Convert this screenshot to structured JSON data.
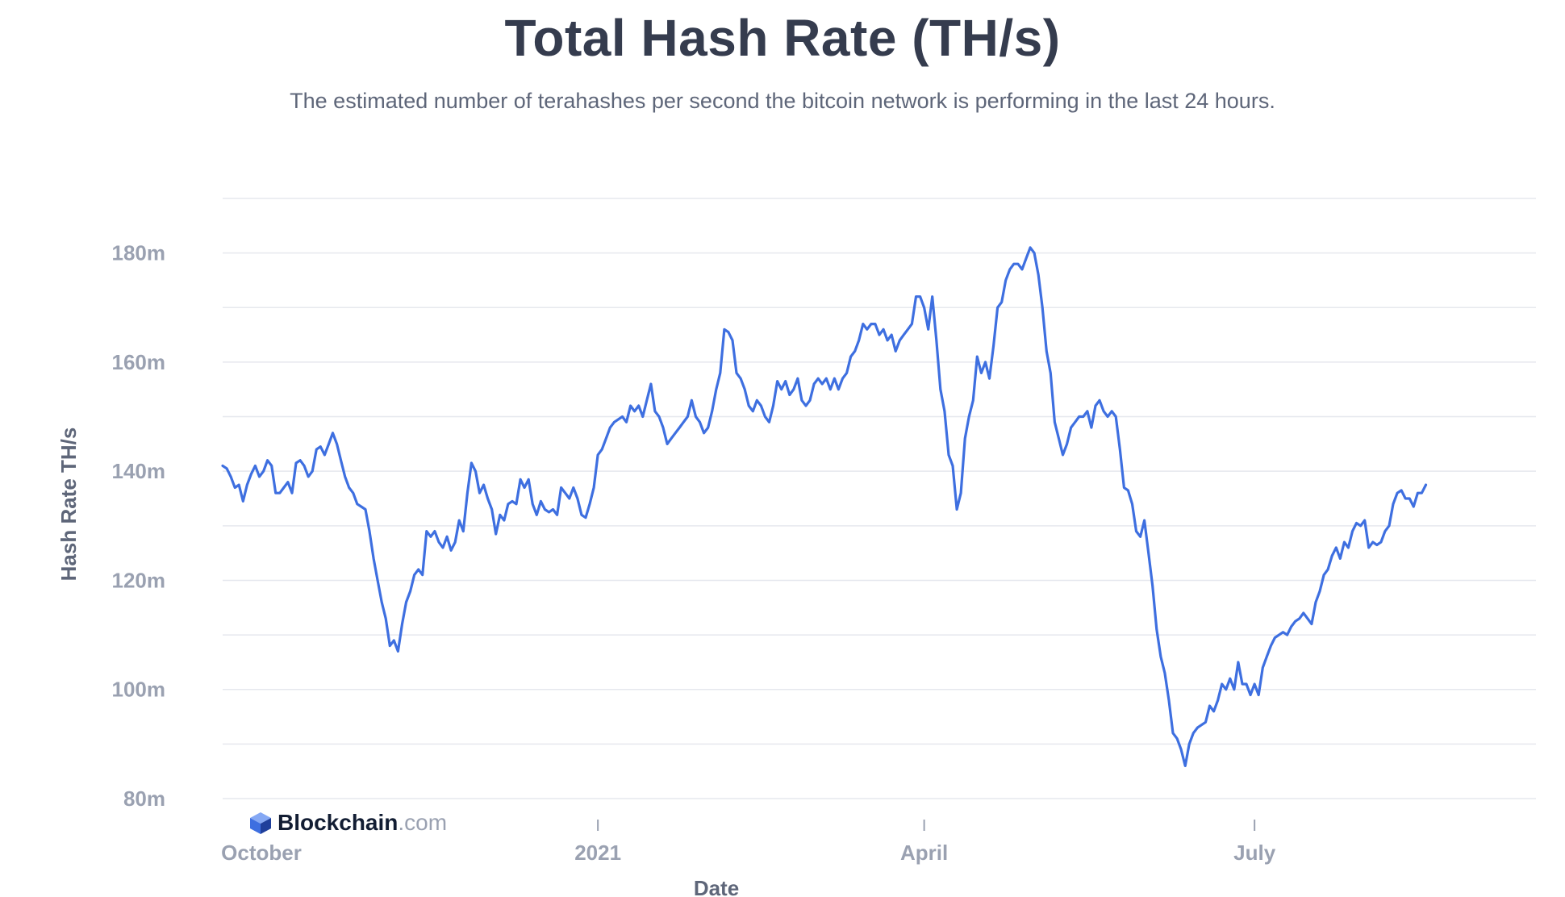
{
  "title": "Total Hash Rate (TH/s)",
  "subtitle": "The estimated number of terahashes per second the bitcoin network is performing in the last 24 hours.",
  "brand": {
    "name": "Blockchain",
    "suffix": ".com",
    "icon": "blockchain-logo-icon"
  },
  "colors": {
    "line": "#3e6fe0",
    "grid": "#e6e8ee",
    "title": "#353c4e",
    "axis_text": "#9aa1b1"
  },
  "chart_data": {
    "type": "line",
    "title": "Total Hash Rate (TH/s)",
    "xlabel": "Date",
    "ylabel": "Hash Rate TH/s",
    "x_unit": "days since start of series (≈ Sep 29, 2020)",
    "xlim": [
      0,
      322
    ],
    "ylim": [
      80,
      190
    ],
    "y_ticks": [
      {
        "value": 80,
        "label": "80m"
      },
      {
        "value": 100,
        "label": "100m"
      },
      {
        "value": 120,
        "label": "120m"
      },
      {
        "value": 140,
        "label": "140m"
      },
      {
        "value": 160,
        "label": "160m"
      },
      {
        "value": 180,
        "label": "180m"
      }
    ],
    "x_ticks": [
      {
        "value": 0,
        "label": "October"
      },
      {
        "value": 92,
        "label": "2021"
      },
      {
        "value": 172,
        "label": "April"
      },
      {
        "value": 253,
        "label": "July"
      }
    ],
    "grid": true,
    "legend": "none",
    "series": [
      {
        "name": "Hash Rate TH/s",
        "points": [
          [
            0,
            141
          ],
          [
            1,
            140.5
          ],
          [
            2,
            139
          ],
          [
            3,
            137
          ],
          [
            4,
            137.5
          ],
          [
            5,
            134.5
          ],
          [
            6,
            137.5
          ],
          [
            7,
            139.5
          ],
          [
            8,
            141
          ],
          [
            9,
            139
          ],
          [
            10,
            140
          ],
          [
            11,
            142
          ],
          [
            12,
            141
          ],
          [
            13,
            136
          ],
          [
            14,
            136
          ],
          [
            15,
            137
          ],
          [
            16,
            138
          ],
          [
            17,
            136
          ],
          [
            18,
            141.5
          ],
          [
            19,
            142
          ],
          [
            20,
            141
          ],
          [
            21,
            139
          ],
          [
            22,
            140
          ],
          [
            23,
            144
          ],
          [
            24,
            144.5
          ],
          [
            25,
            143
          ],
          [
            26,
            145
          ],
          [
            27,
            147
          ],
          [
            28,
            145
          ],
          [
            29,
            142
          ],
          [
            30,
            139
          ],
          [
            31,
            137
          ],
          [
            32,
            136
          ],
          [
            33,
            134
          ],
          [
            34,
            133.5
          ],
          [
            35,
            133
          ],
          [
            36,
            129
          ],
          [
            37,
            124
          ],
          [
            38,
            120
          ],
          [
            39,
            116
          ],
          [
            40,
            113
          ],
          [
            41,
            108
          ],
          [
            42,
            109
          ],
          [
            43,
            107
          ],
          [
            44,
            112
          ],
          [
            45,
            116
          ],
          [
            46,
            118
          ],
          [
            47,
            121
          ],
          [
            48,
            122
          ],
          [
            49,
            121
          ],
          [
            50,
            129
          ],
          [
            51,
            128
          ],
          [
            52,
            129
          ],
          [
            53,
            127
          ],
          [
            54,
            126
          ],
          [
            55,
            128
          ],
          [
            56,
            125.5
          ],
          [
            57,
            127
          ],
          [
            58,
            131
          ],
          [
            59,
            129
          ],
          [
            60,
            136
          ],
          [
            61,
            141.5
          ],
          [
            62,
            140
          ],
          [
            63,
            136
          ],
          [
            64,
            137.5
          ],
          [
            65,
            135
          ],
          [
            66,
            133
          ],
          [
            67,
            128.5
          ],
          [
            68,
            132
          ],
          [
            69,
            131
          ],
          [
            70,
            134
          ],
          [
            71,
            134.5
          ],
          [
            72,
            134
          ],
          [
            73,
            138.5
          ],
          [
            74,
            137
          ],
          [
            75,
            138.5
          ],
          [
            76,
            134
          ],
          [
            77,
            132
          ],
          [
            78,
            134.5
          ],
          [
            79,
            133
          ],
          [
            80,
            132.5
          ],
          [
            81,
            133
          ],
          [
            82,
            132
          ],
          [
            83,
            137
          ],
          [
            84,
            136
          ],
          [
            85,
            135
          ],
          [
            86,
            137
          ],
          [
            87,
            135
          ],
          [
            88,
            132
          ],
          [
            89,
            131.5
          ],
          [
            90,
            134
          ],
          [
            91,
            137
          ],
          [
            92,
            143
          ],
          [
            93,
            144
          ],
          [
            94,
            146
          ],
          [
            95,
            148
          ],
          [
            96,
            149
          ],
          [
            97,
            149.5
          ],
          [
            98,
            150
          ],
          [
            99,
            149
          ],
          [
            100,
            152
          ],
          [
            101,
            151
          ],
          [
            102,
            152
          ],
          [
            103,
            150
          ],
          [
            104,
            153
          ],
          [
            105,
            156
          ],
          [
            106,
            151
          ],
          [
            107,
            150
          ],
          [
            108,
            148
          ],
          [
            109,
            145
          ],
          [
            110,
            146
          ],
          [
            111,
            147
          ],
          [
            112,
            148
          ],
          [
            113,
            149
          ],
          [
            114,
            150
          ],
          [
            115,
            153
          ],
          [
            116,
            150
          ],
          [
            117,
            149
          ],
          [
            118,
            147
          ],
          [
            119,
            148
          ],
          [
            120,
            151
          ],
          [
            121,
            155
          ],
          [
            122,
            158
          ],
          [
            123,
            166
          ],
          [
            124,
            165.5
          ],
          [
            125,
            164
          ],
          [
            126,
            158
          ],
          [
            127,
            157
          ],
          [
            128,
            155
          ],
          [
            129,
            152
          ],
          [
            130,
            151
          ],
          [
            131,
            153
          ],
          [
            132,
            152
          ],
          [
            133,
            150
          ],
          [
            134,
            149
          ],
          [
            135,
            152
          ],
          [
            136,
            156.5
          ],
          [
            137,
            155
          ],
          [
            138,
            156.5
          ],
          [
            139,
            154
          ],
          [
            140,
            155
          ],
          [
            141,
            157
          ],
          [
            142,
            153
          ],
          [
            143,
            152
          ],
          [
            144,
            153
          ],
          [
            145,
            156
          ],
          [
            146,
            157
          ],
          [
            147,
            156
          ],
          [
            148,
            157
          ],
          [
            149,
            155
          ],
          [
            150,
            157
          ],
          [
            151,
            155
          ],
          [
            152,
            157
          ],
          [
            153,
            158
          ],
          [
            154,
            161
          ],
          [
            155,
            162
          ],
          [
            156,
            164
          ],
          [
            157,
            167
          ],
          [
            158,
            166
          ],
          [
            159,
            167
          ],
          [
            160,
            167
          ],
          [
            161,
            165
          ],
          [
            162,
            166
          ],
          [
            163,
            164
          ],
          [
            164,
            165
          ],
          [
            165,
            162
          ],
          [
            166,
            164
          ],
          [
            167,
            165
          ],
          [
            168,
            166
          ],
          [
            169,
            167
          ],
          [
            170,
            172
          ],
          [
            171,
            172
          ],
          [
            172,
            170
          ],
          [
            173,
            166
          ],
          [
            174,
            172
          ],
          [
            175,
            164
          ],
          [
            176,
            155
          ],
          [
            177,
            151
          ],
          [
            178,
            143
          ],
          [
            179,
            141
          ],
          [
            180,
            133
          ],
          [
            181,
            136
          ],
          [
            182,
            146
          ],
          [
            183,
            150
          ],
          [
            184,
            153
          ],
          [
            185,
            161
          ],
          [
            186,
            158
          ],
          [
            187,
            160
          ],
          [
            188,
            157
          ],
          [
            189,
            163
          ],
          [
            190,
            170
          ],
          [
            191,
            171
          ],
          [
            192,
            175
          ],
          [
            193,
            177
          ],
          [
            194,
            178
          ],
          [
            195,
            178
          ],
          [
            196,
            177
          ],
          [
            197,
            179
          ],
          [
            198,
            181
          ],
          [
            199,
            180
          ],
          [
            200,
            176
          ],
          [
            201,
            170
          ],
          [
            202,
            162
          ],
          [
            203,
            158
          ],
          [
            204,
            149
          ],
          [
            205,
            146
          ],
          [
            206,
            143
          ],
          [
            207,
            145
          ],
          [
            208,
            148
          ],
          [
            209,
            149
          ],
          [
            210,
            150
          ],
          [
            211,
            150
          ],
          [
            212,
            151
          ],
          [
            213,
            148
          ],
          [
            214,
            152
          ],
          [
            215,
            153
          ],
          [
            216,
            151
          ],
          [
            217,
            150
          ],
          [
            218,
            151
          ],
          [
            219,
            150
          ],
          [
            220,
            144
          ],
          [
            221,
            137
          ],
          [
            222,
            136.5
          ],
          [
            223,
            134
          ],
          [
            224,
            129
          ],
          [
            225,
            128
          ],
          [
            226,
            131
          ],
          [
            227,
            125
          ],
          [
            228,
            119
          ],
          [
            229,
            111
          ],
          [
            230,
            106
          ],
          [
            231,
            103
          ],
          [
            232,
            98
          ],
          [
            233,
            92
          ],
          [
            234,
            91
          ],
          [
            235,
            89
          ],
          [
            236,
            86
          ],
          [
            237,
            90
          ],
          [
            238,
            92
          ],
          [
            239,
            93
          ],
          [
            240,
            93.5
          ],
          [
            241,
            94
          ],
          [
            242,
            97
          ],
          [
            243,
            96
          ],
          [
            244,
            98
          ],
          [
            245,
            101
          ],
          [
            246,
            100
          ],
          [
            247,
            102
          ],
          [
            248,
            100
          ],
          [
            249,
            105
          ],
          [
            250,
            101
          ],
          [
            251,
            101
          ],
          [
            252,
            99
          ],
          [
            253,
            101
          ],
          [
            254,
            99
          ],
          [
            255,
            104
          ],
          [
            256,
            106
          ],
          [
            257,
            108
          ],
          [
            258,
            109.5
          ],
          [
            259,
            110
          ],
          [
            260,
            110.5
          ],
          [
            261,
            110
          ],
          [
            262,
            111.5
          ],
          [
            263,
            112.5
          ],
          [
            264,
            113
          ],
          [
            265,
            114
          ],
          [
            266,
            113
          ],
          [
            267,
            112
          ],
          [
            268,
            116
          ],
          [
            269,
            118
          ],
          [
            270,
            121
          ],
          [
            271,
            122
          ],
          [
            272,
            124.5
          ],
          [
            273,
            126
          ],
          [
            274,
            124
          ],
          [
            275,
            127
          ],
          [
            276,
            126
          ],
          [
            277,
            129
          ],
          [
            278,
            130.5
          ],
          [
            279,
            130
          ],
          [
            280,
            131
          ],
          [
            281,
            126
          ],
          [
            282,
            127
          ],
          [
            283,
            126.5
          ],
          [
            284,
            127
          ],
          [
            285,
            129
          ],
          [
            286,
            130
          ],
          [
            287,
            134
          ],
          [
            288,
            136
          ],
          [
            289,
            136.5
          ],
          [
            290,
            135
          ],
          [
            291,
            135
          ],
          [
            292,
            133.5
          ],
          [
            293,
            136
          ],
          [
            294,
            136
          ],
          [
            295,
            137.5
          ]
        ]
      }
    ]
  }
}
